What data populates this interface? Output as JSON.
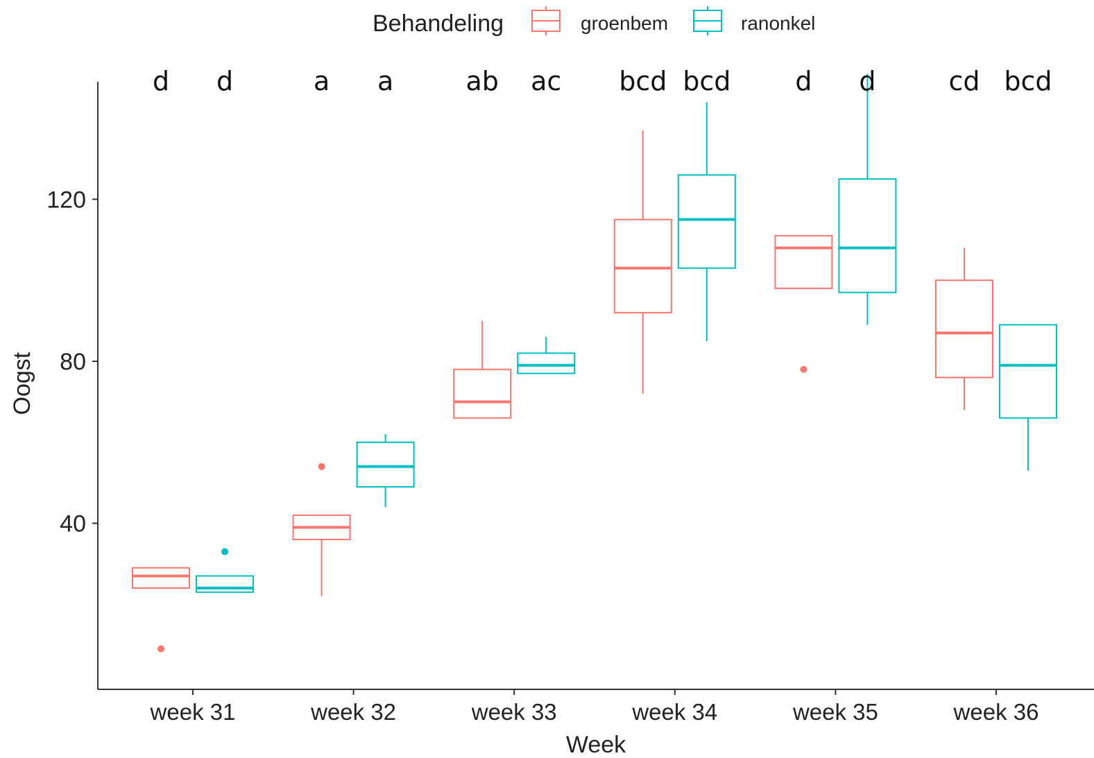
{
  "chart_data": {
    "type": "boxplot",
    "xlabel": "Week",
    "ylabel": "Oogst",
    "ylim": [
      -1,
      149
    ],
    "yticks": [
      40,
      80,
      120
    ],
    "grid": false,
    "legend": {
      "title": "Behandeling",
      "placement": "top",
      "entries": [
        "groenbem",
        "ranonkel"
      ]
    },
    "categories": [
      "week 31",
      "week 32",
      "week 33",
      "week 34",
      "week 35",
      "week 36"
    ],
    "colors": {
      "groenbem": "#F8766D",
      "ranonkel": "#00BFC4"
    },
    "series": [
      {
        "name": "groenbem",
        "boxes": [
          {
            "min": 24,
            "q1": 24,
            "median": 27,
            "q3": 29,
            "max": 29,
            "outliers": [
              9
            ]
          },
          {
            "min": 22,
            "q1": 36,
            "median": 39,
            "q3": 42,
            "max": 42,
            "outliers": [
              54
            ]
          },
          {
            "min": 66,
            "q1": 66,
            "median": 70,
            "q3": 78,
            "max": 90,
            "outliers": []
          },
          {
            "min": 72,
            "q1": 92,
            "median": 103,
            "q3": 115,
            "max": 137,
            "outliers": []
          },
          {
            "min": 98,
            "q1": 98,
            "median": 108,
            "q3": 111,
            "max": 111,
            "outliers": [
              78
            ]
          },
          {
            "min": 68,
            "q1": 76,
            "median": 87,
            "q3": 100,
            "max": 108,
            "outliers": []
          }
        ],
        "letters": [
          "d",
          "a",
          "ab",
          "bcd",
          "d",
          "cd"
        ]
      },
      {
        "name": "ranonkel",
        "boxes": [
          {
            "min": 23,
            "q1": 23,
            "median": 24,
            "q3": 27,
            "max": 27,
            "outliers": [
              33
            ]
          },
          {
            "min": 44,
            "q1": 49,
            "median": 54,
            "q3": 60,
            "max": 62,
            "outliers": []
          },
          {
            "min": 77,
            "q1": 77,
            "median": 79,
            "q3": 82,
            "max": 86,
            "outliers": []
          },
          {
            "min": 85,
            "q1": 103,
            "median": 115,
            "q3": 126,
            "max": 144,
            "outliers": []
          },
          {
            "min": 89,
            "q1": 97,
            "median": 108,
            "q3": 125,
            "max": 151,
            "outliers": []
          },
          {
            "min": 53,
            "q1": 66,
            "median": 79,
            "q3": 89,
            "max": 89,
            "outliers": []
          }
        ],
        "letters": [
          "d",
          "a",
          "ac",
          "bcd",
          "d",
          "bcd"
        ]
      }
    ]
  }
}
